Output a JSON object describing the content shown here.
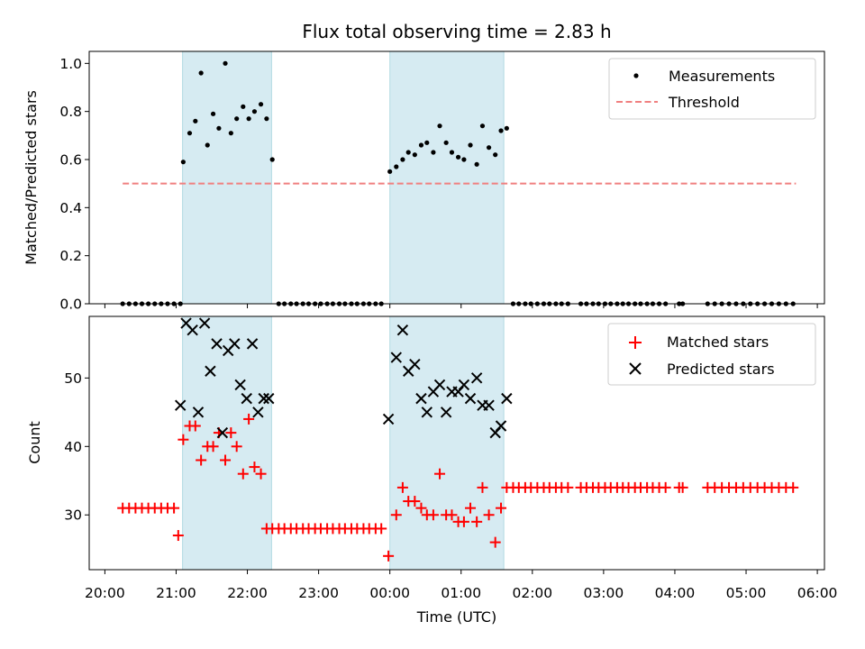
{
  "chart_data": [
    {
      "type": "scatter",
      "title": "Flux total observing time = 2.83 h",
      "xlabel": "",
      "ylabel": "Matched/Predicted stars",
      "ylim": [
        0,
        1.05
      ],
      "xlim_hours_since_20": [
        -0.22,
        10.1
      ],
      "yticks": [
        0.0,
        0.2,
        0.4,
        0.6,
        0.8,
        1.0
      ],
      "ytick_labels": [
        "0.0",
        "0.2",
        "0.4",
        "0.6",
        "0.8",
        "1.0"
      ],
      "shaded_intervals_hours": [
        [
          1.09,
          2.34
        ],
        [
          4.0,
          5.6
        ]
      ],
      "legend": [
        "Measurements",
        "Threshold"
      ],
      "legend_position": "top-right",
      "threshold": {
        "value": 0.5,
        "x_range_hours": [
          0.25,
          9.7
        ],
        "color": "#f08080"
      },
      "series": [
        {
          "name": "Measurements",
          "color": "#000000",
          "marker": "dot",
          "x": [
            0.25,
            0.34,
            0.43,
            0.52,
            0.61,
            0.7,
            0.79,
            0.88,
            0.97,
            1.06,
            1.1,
            1.19,
            1.27,
            1.35,
            1.44,
            1.52,
            1.6,
            1.69,
            1.77,
            1.85,
            1.94,
            2.02,
            2.1,
            2.19,
            2.27,
            2.35,
            2.44,
            2.52,
            2.61,
            2.69,
            2.78,
            2.86,
            2.95,
            3.03,
            3.12,
            3.2,
            3.29,
            3.37,
            3.46,
            3.54,
            3.63,
            3.71,
            3.8,
            3.88,
            4.0,
            4.09,
            4.18,
            4.26,
            4.35,
            4.44,
            4.52,
            4.61,
            4.7,
            4.79,
            4.87,
            4.96,
            5.04,
            5.13,
            5.22,
            5.3,
            5.39,
            5.48,
            5.56,
            5.64,
            5.73,
            5.81,
            5.9,
            5.98,
            6.07,
            6.16,
            6.24,
            6.33,
            6.41,
            6.5,
            6.68,
            6.76,
            6.85,
            6.93,
            7.02,
            7.1,
            7.19,
            7.27,
            7.35,
            7.44,
            7.52,
            7.61,
            7.69,
            7.78,
            7.87,
            8.06,
            8.11,
            8.46,
            8.56,
            8.66,
            8.76,
            8.86,
            8.96,
            9.06,
            9.16,
            9.26,
            9.36,
            9.46,
            9.56,
            9.66
          ],
          "y": [
            0,
            0,
            0,
            0,
            0,
            0,
            0,
            0,
            0,
            0,
            0.59,
            0.71,
            0.76,
            0.96,
            0.66,
            0.79,
            0.73,
            1.0,
            0.71,
            0.77,
            0.82,
            0.77,
            0.8,
            0.83,
            0.77,
            0.6,
            0,
            0,
            0,
            0,
            0,
            0,
            0,
            0,
            0,
            0,
            0,
            0,
            0,
            0,
            0,
            0,
            0,
            0,
            0.55,
            0.57,
            0.6,
            0.63,
            0.62,
            0.66,
            0.67,
            0.63,
            0.74,
            0.67,
            0.63,
            0.61,
            0.6,
            0.66,
            0.58,
            0.74,
            0.65,
            0.62,
            0.72,
            0.73,
            0,
            0,
            0,
            0,
            0,
            0,
            0,
            0,
            0,
            0,
            0,
            0,
            0,
            0,
            0,
            0,
            0,
            0,
            0,
            0,
            0,
            0,
            0,
            0,
            0,
            0,
            0,
            0,
            0,
            0,
            0,
            0,
            0,
            0,
            0,
            0,
            0,
            0,
            0,
            0
          ]
        }
      ]
    },
    {
      "type": "scatter",
      "title": "",
      "xlabel": "Time (UTC)",
      "ylabel": "Count",
      "ylim": [
        22,
        59
      ],
      "xlim_hours_since_20": [
        -0.22,
        10.1
      ],
      "yticks": [
        30,
        40,
        50
      ],
      "ytick_labels": [
        "30",
        "40",
        "50"
      ],
      "xtick_labels": [
        "20:00",
        "21:00",
        "22:00",
        "23:00",
        "00:00",
        "01:00",
        "02:00",
        "03:00",
        "04:00",
        "05:00",
        "06:00"
      ],
      "shaded_intervals_hours": [
        [
          1.09,
          2.34
        ],
        [
          4.0,
          5.6
        ]
      ],
      "legend": [
        "Matched stars",
        "Predicted stars"
      ],
      "legend_position": "top-right",
      "series": [
        {
          "name": "Matched stars",
          "color": "#ff0000",
          "marker": "plus",
          "x": [
            0.25,
            0.34,
            0.43,
            0.52,
            0.61,
            0.7,
            0.79,
            0.88,
            0.97,
            1.03,
            1.1,
            1.19,
            1.27,
            1.35,
            1.44,
            1.52,
            1.6,
            1.69,
            1.77,
            1.85,
            1.94,
            2.02,
            2.1,
            2.19,
            2.27,
            2.35,
            2.44,
            2.52,
            2.61,
            2.69,
            2.78,
            2.86,
            2.95,
            3.03,
            3.12,
            3.2,
            3.29,
            3.37,
            3.46,
            3.54,
            3.63,
            3.71,
            3.8,
            3.88,
            3.98,
            4.09,
            4.18,
            4.26,
            4.35,
            4.44,
            4.52,
            4.61,
            4.7,
            4.79,
            4.87,
            4.96,
            5.04,
            5.13,
            5.22,
            5.3,
            5.39,
            5.48,
            5.56,
            5.64,
            5.73,
            5.81,
            5.9,
            5.98,
            6.07,
            6.16,
            6.24,
            6.33,
            6.41,
            6.5,
            6.68,
            6.76,
            6.85,
            6.93,
            7.02,
            7.1,
            7.19,
            7.27,
            7.35,
            7.44,
            7.52,
            7.61,
            7.69,
            7.78,
            7.87,
            8.06,
            8.11,
            8.46,
            8.56,
            8.66,
            8.76,
            8.86,
            8.96,
            9.06,
            9.16,
            9.26,
            9.36,
            9.46,
            9.56,
            9.66
          ],
          "y": [
            31,
            31,
            31,
            31,
            31,
            31,
            31,
            31,
            31,
            27,
            41,
            43,
            43,
            38,
            40,
            40,
            42,
            38,
            42,
            40,
            36,
            44,
            37,
            36,
            28,
            28,
            28,
            28,
            28,
            28,
            28,
            28,
            28,
            28,
            28,
            28,
            28,
            28,
            28,
            28,
            28,
            28,
            28,
            28,
            24,
            30,
            34,
            32,
            32,
            31,
            30,
            30,
            36,
            30,
            30,
            29,
            29,
            31,
            29,
            34,
            30,
            26,
            31,
            34,
            34,
            34,
            34,
            34,
            34,
            34,
            34,
            34,
            34,
            34,
            34,
            34,
            34,
            34,
            34,
            34,
            34,
            34,
            34,
            34,
            34,
            34,
            34,
            34,
            34,
            34,
            34,
            34,
            34,
            34,
            34,
            34,
            34,
            34,
            34,
            34,
            34,
            34,
            34,
            34
          ]
        },
        {
          "name": "Predicted stars",
          "color": "#000000",
          "marker": "x",
          "x": [
            1.06,
            1.14,
            1.23,
            1.31,
            1.4,
            1.48,
            1.57,
            1.65,
            1.73,
            1.82,
            1.9,
            1.99,
            2.07,
            2.15,
            2.23,
            2.3,
            3.98,
            4.09,
            4.18,
            4.26,
            4.35,
            4.44,
            4.52,
            4.61,
            4.7,
            4.79,
            4.87,
            4.96,
            5.04,
            5.13,
            5.22,
            5.3,
            5.39,
            5.48,
            5.56,
            5.64
          ],
          "y": [
            46,
            58,
            57,
            45,
            58,
            51,
            55,
            42,
            54,
            55,
            49,
            47,
            55,
            45,
            47,
            47,
            44,
            53,
            57,
            51,
            52,
            47,
            45,
            48,
            49,
            45,
            48,
            48,
            49,
            47,
            50,
            46,
            46,
            42,
            43,
            47
          ]
        }
      ]
    }
  ]
}
